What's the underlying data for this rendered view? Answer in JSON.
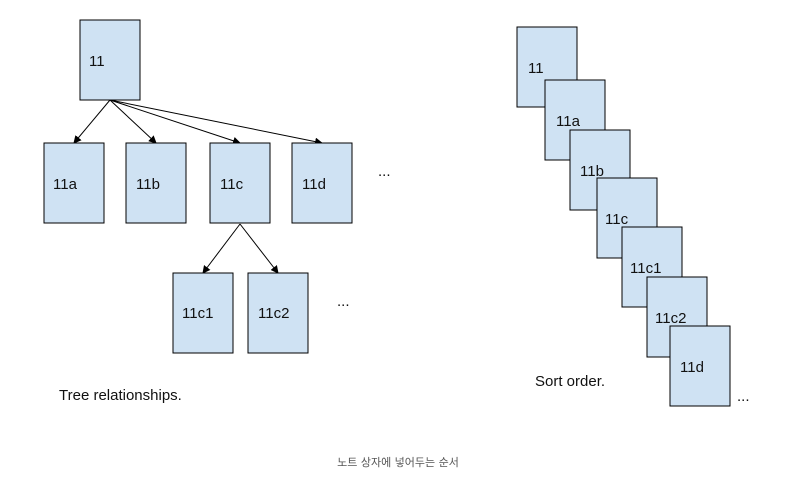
{
  "colors": {
    "card_fill": "#cfe2f3",
    "card_stroke": "#000000",
    "line": "#000000",
    "text": "#111111",
    "caption": "#555555"
  },
  "tree": {
    "root": "11",
    "children": [
      "11a",
      "11b",
      "11c",
      "11d"
    ],
    "children_more": "...",
    "grandchildren": [
      "11c1",
      "11c2"
    ],
    "grandchildren_more": "...",
    "label": "Tree relationships."
  },
  "sort": {
    "items": [
      "11",
      "11a",
      "11b",
      "11c",
      "11c1",
      "11c2",
      "11d"
    ],
    "more": "...",
    "label": "Sort order."
  },
  "caption": "노트 상자에 넣어두는 순서"
}
